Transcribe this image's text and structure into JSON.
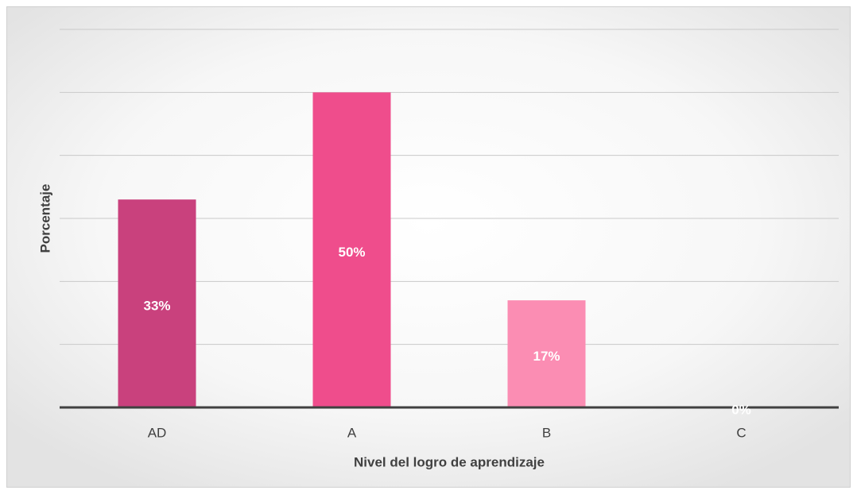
{
  "chart_data": {
    "type": "bar",
    "x_label": "Nivel del logro de aprendizaje",
    "y_label": "Porcentaje",
    "categories": [
      "AD",
      "A",
      "B",
      "C"
    ],
    "values": [
      33,
      50,
      17,
      0
    ],
    "value_labels": [
      "33%",
      "50%",
      "17%",
      "0%"
    ],
    "colors": [
      "#c9417d",
      "#ef4d8c",
      "#fb8db3",
      "#f9b3cc"
    ],
    "ylim": [
      0,
      60
    ],
    "yticks": [
      0,
      10,
      20,
      30,
      40,
      50,
      60
    ],
    "grid": true
  }
}
